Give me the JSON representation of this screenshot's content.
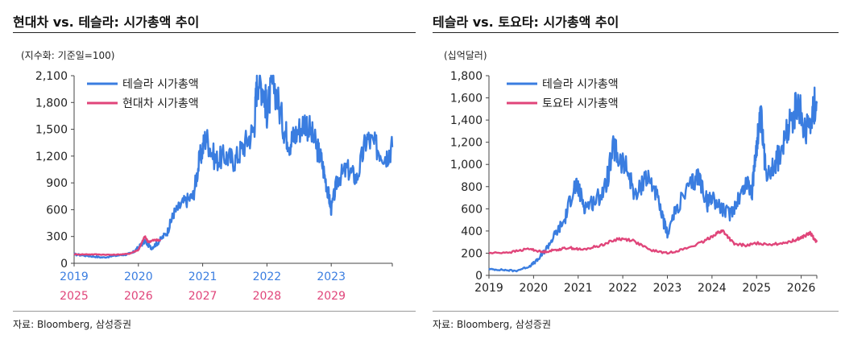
{
  "chart_data": [
    {
      "type": "line",
      "title": "현대차 vs. 테슬라: 시가총액 추이",
      "unit_label": "(지수화: 기준일=100)",
      "ylim": [
        0,
        2100
      ],
      "yticks": [
        0,
        300,
        600,
        900,
        1200,
        1500,
        1800,
        2100
      ],
      "ytick_labels": [
        "0",
        "300",
        "600",
        "900",
        "1,200",
        "1,500",
        "1,800",
        "2,100"
      ],
      "x_axes": [
        {
          "labels": [
            "2019",
            "2020",
            "2021",
            "2022",
            "2023"
          ],
          "color": "#3a7de0"
        },
        {
          "labels": [
            "2025",
            "2026",
            "2027",
            "2028",
            "2029"
          ],
          "color": "#e0457a"
        }
      ],
      "grid": false,
      "legend_position": "top-left",
      "series": [
        {
          "name": "테슬라 시가총액",
          "color": "#3a7de0",
          "x": [
            2019.0,
            2019.25,
            2019.45,
            2019.7,
            2019.9,
            2020.0,
            2020.1,
            2020.2,
            2020.3,
            2020.45,
            2020.55,
            2020.7,
            2020.85,
            2020.95,
            2021.05,
            2021.2,
            2021.35,
            2021.5,
            2021.65,
            2021.8,
            2021.85,
            2021.95,
            2022.0,
            2022.1,
            2022.25,
            2022.35,
            2022.45,
            2022.6,
            2022.75,
            2022.85,
            2022.95,
            2023.0,
            2023.1,
            2023.25,
            2023.4,
            2023.55,
            2023.7,
            2023.85,
            2023.95
          ],
          "values": [
            100,
            80,
            65,
            90,
            110,
            175,
            250,
            170,
            230,
            350,
            560,
            680,
            750,
            1150,
            1420,
            1150,
            1200,
            1150,
            1330,
            1500,
            2100,
            1950,
            1700,
            2050,
            1550,
            1350,
            1450,
            1600,
            1350,
            1150,
            800,
            600,
            950,
            1050,
            950,
            1400,
            1300,
            1200,
            1300
          ]
        },
        {
          "name": "현대차 시가총액",
          "color": "#e0457a",
          "x": [
            2019.0,
            2019.3,
            2019.6,
            2019.85,
            2020.0,
            2020.1,
            2020.15,
            2020.25,
            2020.35
          ],
          "values": [
            100,
            100,
            95,
            105,
            150,
            300,
            240,
            260,
            255
          ]
        }
      ],
      "source": "자료: Bloomberg, 삼성증권"
    },
    {
      "type": "line",
      "title": "테슬라 vs. 토요타: 시가총액 추이",
      "unit_label": "(십억달러)",
      "ylim": [
        0,
        1800
      ],
      "yticks": [
        0,
        200,
        400,
        600,
        800,
        1000,
        1200,
        1400,
        1600,
        1800
      ],
      "ytick_labels": [
        "0",
        "200",
        "400",
        "600",
        "800",
        "1,000",
        "1,200",
        "1,400",
        "1,600",
        "1,800"
      ],
      "x_axes": [
        {
          "labels": [
            "2019",
            "2020",
            "2021",
            "2022",
            "2023",
            "2024",
            "2025",
            "2026"
          ],
          "color": "#222222"
        }
      ],
      "grid": false,
      "legend_position": "top-left",
      "series": [
        {
          "name": "테슬라 시가총액",
          "color": "#3a7de0",
          "x": [
            2019.0,
            2019.3,
            2019.6,
            2019.9,
            2020.1,
            2020.3,
            2020.5,
            2020.7,
            2020.9,
            2021.0,
            2021.15,
            2021.4,
            2021.6,
            2021.8,
            2021.9,
            2022.1,
            2022.3,
            2022.5,
            2022.7,
            2022.9,
            2023.0,
            2023.2,
            2023.5,
            2023.7,
            2023.9,
            2024.0,
            2024.2,
            2024.4,
            2024.6,
            2024.8,
            2024.9,
            2025.0,
            2025.1,
            2025.2,
            2025.4,
            2025.6,
            2025.8,
            2025.95,
            2026.1,
            2026.25,
            2026.35
          ],
          "values": [
            55,
            50,
            40,
            80,
            140,
            250,
            380,
            500,
            800,
            780,
            620,
            680,
            780,
            1150,
            1050,
            950,
            700,
            900,
            800,
            500,
            380,
            600,
            800,
            900,
            650,
            720,
            600,
            550,
            700,
            850,
            750,
            1200,
            1400,
            950,
            1000,
            1150,
            1450,
            1500,
            1300,
            1500,
            1550
          ]
        },
        {
          "name": "토요타 시가총액",
          "color": "#e0457a",
          "x": [
            2019.0,
            2019.5,
            2019.9,
            2020.2,
            2020.5,
            2020.8,
            2021.1,
            2021.5,
            2021.9,
            2022.2,
            2022.6,
            2023.0,
            2023.4,
            2023.8,
            2024.1,
            2024.25,
            2024.5,
            2024.8,
            2025.0,
            2025.4,
            2025.8,
            2026.0,
            2026.2,
            2026.35
          ],
          "values": [
            200,
            210,
            240,
            210,
            230,
            250,
            230,
            270,
            330,
            320,
            230,
            200,
            240,
            300,
            380,
            400,
            280,
            270,
            290,
            280,
            310,
            340,
            380,
            300
          ]
        }
      ],
      "source": "자료: Bloomberg, 삼성증권"
    }
  ]
}
